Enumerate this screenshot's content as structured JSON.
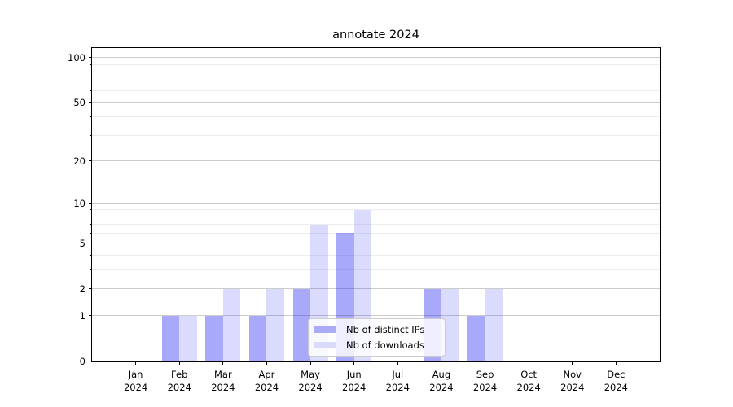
{
  "chart_data": {
    "type": "bar",
    "title": "annotate 2024",
    "x_categories": [
      {
        "month": "Jan",
        "year": "2024"
      },
      {
        "month": "Feb",
        "year": "2024"
      },
      {
        "month": "Mar",
        "year": "2024"
      },
      {
        "month": "Apr",
        "year": "2024"
      },
      {
        "month": "May",
        "year": "2024"
      },
      {
        "month": "Jun",
        "year": "2024"
      },
      {
        "month": "Jul",
        "year": "2024"
      },
      {
        "month": "Aug",
        "year": "2024"
      },
      {
        "month": "Sep",
        "year": "2024"
      },
      {
        "month": "Oct",
        "year": "2024"
      },
      {
        "month": "Nov",
        "year": "2024"
      },
      {
        "month": "Dec",
        "year": "2024"
      }
    ],
    "series": [
      {
        "name": "Nb of distinct IPs",
        "values": [
          0,
          1,
          1,
          1,
          2,
          6,
          0,
          2,
          1,
          0,
          0,
          0
        ],
        "fill": "rgba(40,40,245,0.40)",
        "swatch_hex": "#aaaaf7"
      },
      {
        "name": "Nb of downloads",
        "values": [
          0,
          1,
          2,
          2,
          7,
          9,
          0,
          2,
          2,
          0,
          0,
          0
        ],
        "fill": "rgba(40,40,245,0.17)",
        "swatch_hex": "#dadafc"
      }
    ],
    "yscale": "log10(1+x)",
    "ylim": [
      0,
      116
    ],
    "yticks_major": [
      0,
      1,
      2,
      5,
      10,
      20,
      50,
      100
    ],
    "yticks_minor": [
      3,
      4,
      6,
      7,
      8,
      9,
      30,
      40,
      60,
      70,
      80,
      90
    ],
    "grid": "major and minor horizontal gridlines",
    "legend_position": "lower center"
  },
  "colors": {
    "background": "#ffffff",
    "grid_major": "#cccccc",
    "grid_minor": "#ededed",
    "axis": "#000000",
    "text": "#000000",
    "legend_border": "#cccccc"
  }
}
